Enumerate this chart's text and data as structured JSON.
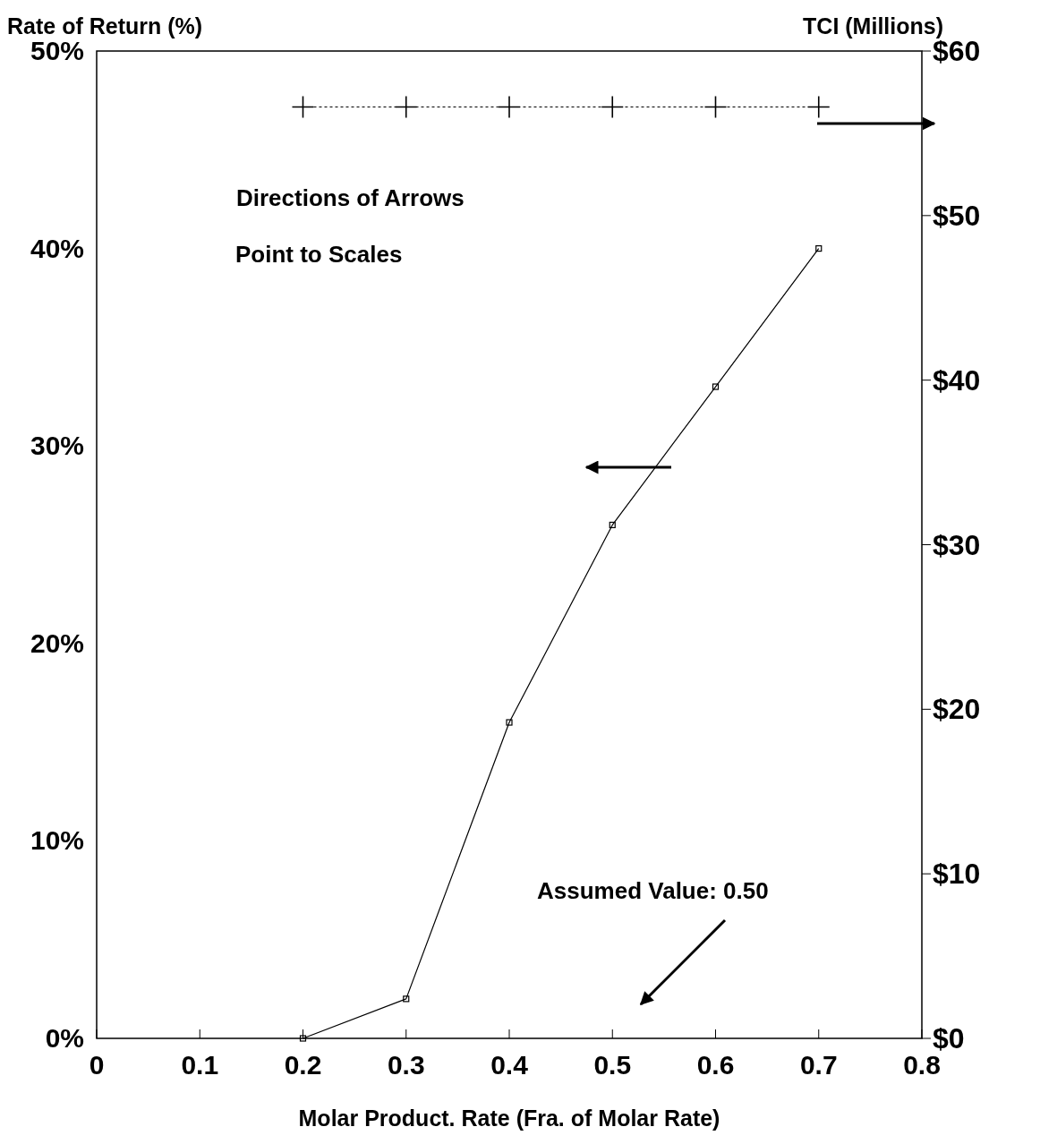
{
  "chart_data": {
    "type": "line",
    "xlabel": "Molar Product. Rate (Fra. of Molar Rate)",
    "ylabel": "Rate of Return (%)",
    "y2label": "TCI (Millions)",
    "x": [
      0.2,
      0.3,
      0.4,
      0.5,
      0.6,
      0.7
    ],
    "series": [
      {
        "color": "#000000",
        "values": [
          0,
          2,
          16,
          26,
          33,
          40
        ],
        "marker": "square",
        "line_style": "solid"
      },
      {
        "color": "#000000",
        "values": [
          56.6,
          56.6,
          56.6,
          56.6,
          56.6,
          56.6
        ],
        "axis": "y2",
        "marker": "cross",
        "line_style": "dotted"
      }
    ],
    "xlim": [
      0,
      0.8
    ],
    "xticks": [
      0,
      0.1,
      0.2,
      0.3,
      0.4,
      0.5,
      0.6,
      0.7,
      0.8
    ],
    "ylim": [
      0,
      50
    ],
    "yticks": [
      {
        "value": 0,
        "label": "0%"
      },
      {
        "value": 10,
        "label": "10%"
      },
      {
        "value": 20,
        "label": "20%"
      },
      {
        "value": 30,
        "label": "30%"
      },
      {
        "value": 40,
        "label": "40%"
      },
      {
        "value": 50,
        "label": "50%"
      }
    ],
    "y2lim": [
      0,
      60
    ],
    "y2ticks": [
      {
        "value": 0,
        "label": "$0"
      },
      {
        "value": 10,
        "label": "$10"
      },
      {
        "value": 20,
        "label": "$20"
      },
      {
        "value": 30,
        "label": "$30"
      },
      {
        "value": 40,
        "label": "$40"
      },
      {
        "value": 50,
        "label": "$50"
      },
      {
        "value": 60,
        "label": "$60"
      }
    ],
    "annotations": [
      "Directions of Arrows",
      "Point to Scales",
      "Assumed Value: 0.50"
    ],
    "grid": false
  }
}
